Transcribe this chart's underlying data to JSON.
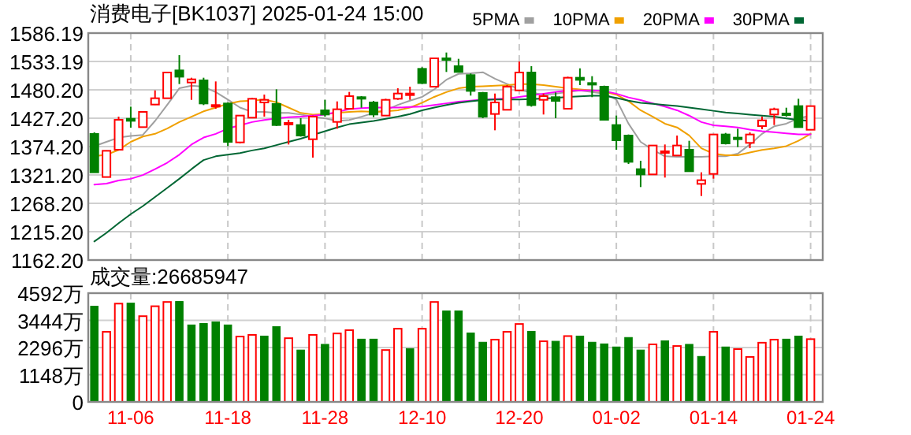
{
  "chart_data": [
    {
      "type": "candlestick",
      "title": "消费电子[BK1037] 2025-01-24 15:00",
      "categories": [
        null,
        null,
        null,
        null,
        null,
        null,
        null,
        null,
        null,
        null,
        null,
        null,
        null,
        null,
        null,
        null,
        null,
        null,
        null,
        null,
        null,
        null,
        null,
        null,
        null,
        null,
        null,
        null,
        null,
        null,
        null,
        null,
        null,
        null,
        null,
        null,
        null,
        null,
        null,
        null,
        null,
        null,
        null,
        null,
        null,
        null,
        null,
        null,
        null,
        null,
        null,
        null,
        null,
        null,
        null,
        null,
        null,
        null,
        null,
        null
      ],
      "ohlc": [
        [
          1397.8,
          1400.7,
          1326.0,
          1326.1
        ],
        [
          1317.3,
          1367.0,
          1317.0,
          1366.3
        ],
        [
          1368.3,
          1430.1,
          1368.0,
          1424.2
        ],
        [
          1426.2,
          1448.8,
          1409.5,
          1422.3
        ],
        [
          1410.5,
          1439.0,
          1410.0,
          1439.0
        ],
        [
          1452.7,
          1479.2,
          1452.0,
          1464.5
        ],
        [
          1464.5,
          1512.6,
          1464.0,
          1512.6
        ],
        [
          1516.5,
          1545.0,
          1491.0,
          1504.7
        ],
        [
          1493.9,
          1502.8,
          1461.5,
          1499.8
        ],
        [
          1497.9,
          1502.8,
          1451.7,
          1454.7
        ],
        [
          1449.8,
          1495.9,
          1444.9,
          1451.8
        ],
        [
          1454.7,
          1456.6,
          1375.2,
          1383.0
        ],
        [
          1382.0,
          1432.1,
          1380.0,
          1432.1
        ],
        [
          1428.2,
          1465.5,
          1428.0,
          1463.5
        ],
        [
          1456.6,
          1471.4,
          1430.1,
          1461.5
        ],
        [
          1453.7,
          1481.2,
          1412.5,
          1414.4
        ],
        [
          1416.4,
          1424.2,
          1378.1,
          1418.4
        ],
        [
          1414.4,
          1427.2,
          1392.8,
          1394.8
        ],
        [
          1387.9,
          1432.1,
          1353.6,
          1430.1
        ],
        [
          1441.9,
          1461.5,
          1430.1,
          1434.1
        ],
        [
          1420.3,
          1458.6,
          1407.6,
          1443.9
        ],
        [
          1444.9,
          1476.3,
          1444.0,
          1468.4
        ],
        [
          1466.5,
          1468.4,
          1446.8,
          1464.5
        ],
        [
          1456.6,
          1459.6,
          1429.2,
          1434.1
        ],
        [
          1432.1,
          1463.5,
          1432.0,
          1461.5
        ],
        [
          1463.5,
          1483.1,
          1461.5,
          1473.3
        ],
        [
          1471.4,
          1486.1,
          1461.5,
          1473.3
        ],
        [
          1519.4,
          1522.4,
          1491.0,
          1492.9
        ],
        [
          1486.1,
          1539.1,
          1486.0,
          1539.1
        ],
        [
          1539.1,
          1549.9,
          1513.6,
          1537.1
        ],
        [
          1524.4,
          1538.1,
          1513.6,
          1513.6
        ],
        [
          1507.7,
          1510.6,
          1469.4,
          1478.2
        ],
        [
          1474.3,
          1476.3,
          1427.2,
          1430.1
        ],
        [
          1435.1,
          1473.3,
          1404.6,
          1456.6
        ],
        [
          1442.9,
          1489.0,
          1442.0,
          1486.1
        ],
        [
          1479.2,
          1533.2,
          1479.0,
          1512.6
        ],
        [
          1512.6,
          1524.4,
          1448.8,
          1451.7
        ],
        [
          1461.5,
          1473.3,
          1434.1,
          1468.4
        ],
        [
          1466.5,
          1475.3,
          1427.2,
          1459.6
        ],
        [
          1444.9,
          1504.7,
          1444.0,
          1502.8
        ],
        [
          1502.8,
          1520.4,
          1489.0,
          1498.8
        ],
        [
          1492.9,
          1505.7,
          1466.5,
          1490.0
        ],
        [
          1486.1,
          1488.0,
          1424.2,
          1424.2
        ],
        [
          1414.4,
          1432.1,
          1368.3,
          1386.0
        ],
        [
          1394.8,
          1396.8,
          1341.8,
          1345.7
        ],
        [
          1332.0,
          1347.7,
          1298.6,
          1322.2
        ],
        [
          1322.2,
          1376.2,
          1322.0,
          1376.2
        ],
        [
          1363.4,
          1378.1,
          1316.3,
          1365.4
        ],
        [
          1357.5,
          1394.8,
          1357.0,
          1376.2
        ],
        [
          1368.3,
          1385.0,
          1328.0,
          1328.1
        ],
        [
          1304.5,
          1326.1,
          1281.9,
          1311.4
        ],
        [
          1323.1,
          1396.8,
          1314.3,
          1396.8
        ],
        [
          1396.8,
          1399.7,
          1378.1,
          1380.1
        ],
        [
          1390.9,
          1407.6,
          1373.2,
          1388.9
        ],
        [
          1381.1,
          1400.7,
          1371.2,
          1396.8
        ],
        [
          1412.5,
          1430.1,
          1406.6,
          1423.2
        ],
        [
          1434.1,
          1446.8,
          1414.4,
          1443.9
        ],
        [
          1436.0,
          1446.8,
          1430.1,
          1434.1
        ],
        [
          1449.8,
          1463.5,
          1410.5,
          1410.5
        ],
        [
          1405.6,
          1449.8,
          1405.0,
          1449.8
        ]
      ],
      "colors": [
        "#008000",
        "#ff0000",
        "#ff0000",
        "#008000",
        "#ff0000",
        "#ff0000",
        "#ff0000",
        "#008000",
        "#ff0000",
        "#008000",
        "#ff0000",
        "#008000",
        "#ff0000",
        "#ff0000",
        "#ff0000",
        "#008000",
        "#ff0000",
        "#008000",
        "#ff0000",
        "#008000",
        "#ff0000",
        "#ff0000",
        "#008000",
        "#008000",
        "#ff0000",
        "#ff0000",
        "#ff0000",
        "#008000",
        "#ff0000",
        "#008000",
        "#008000",
        "#008000",
        "#008000",
        "#ff0000",
        "#ff0000",
        "#ff0000",
        "#008000",
        "#ff0000",
        "#008000",
        "#ff0000",
        "#008000",
        "#008000",
        "#008000",
        "#008000",
        "#008000",
        "#008000",
        "#ff0000",
        "#ff0000",
        "#ff0000",
        "#008000",
        "#ff0000",
        "#ff0000",
        "#008000",
        "#008000",
        "#ff0000",
        "#ff0000",
        "#ff0000",
        "#008000",
        "#008000",
        "#ff0000"
      ],
      "series": [
        {
          "name": "5PMA",
          "type": "line",
          "color": "#a0a0a0",
          "values": [
            1375,
            1383,
            1391,
            1394,
            1396,
            1422,
            1452,
            1483,
            1488,
            1486,
            1476,
            1462,
            1447,
            1439,
            1439,
            1437,
            1437,
            1434,
            1430,
            1427,
            1422,
            1424,
            1430,
            1437,
            1442,
            1452,
            1460,
            1467,
            1481,
            1499,
            1510,
            1511,
            1513,
            1501,
            1491,
            1481,
            1475,
            1471,
            1473,
            1476,
            1479,
            1476,
            1473,
            1462,
            1417,
            1383,
            1368,
            1356,
            1355,
            1355,
            1355,
            1356,
            1356,
            1361,
            1378,
            1398,
            1412,
            1417,
            1427,
            1432
          ]
        },
        {
          "name": "10PMA",
          "type": "line",
          "color": "#f0a000",
          "values": [
            1356,
            1359,
            1368,
            1383,
            1393,
            1398,
            1408,
            1420,
            1430,
            1440,
            1447,
            1454,
            1459,
            1460,
            1462,
            1457,
            1447,
            1437,
            1434,
            1435,
            1437,
            1439,
            1440,
            1439,
            1440,
            1442,
            1447,
            1456,
            1467,
            1476,
            1483,
            1486,
            1487,
            1488,
            1489,
            1491,
            1491,
            1489,
            1486,
            1483,
            1481,
            1479,
            1477,
            1471,
            1459,
            1442,
            1430,
            1417,
            1410,
            1395,
            1371,
            1361,
            1358,
            1358,
            1363,
            1368,
            1371,
            1375,
            1385,
            1398
          ]
        },
        {
          "name": "20PMA",
          "type": "line",
          "color": "#ff00ff",
          "values": [
            1303,
            1305,
            1311,
            1314,
            1321,
            1332,
            1344,
            1359,
            1378,
            1391,
            1398,
            1408,
            1414,
            1420,
            1424,
            1427,
            1429,
            1430,
            1432,
            1434,
            1439,
            1444,
            1446,
            1447,
            1447,
            1447,
            1448,
            1449,
            1452,
            1455,
            1458,
            1460,
            1462,
            1463,
            1464,
            1467,
            1470,
            1473,
            1476,
            1479,
            1479,
            1479,
            1478,
            1473,
            1466,
            1461,
            1455,
            1449,
            1442,
            1432,
            1420,
            1414,
            1412,
            1410,
            1406,
            1403,
            1401,
            1399,
            1397,
            1397
          ]
        },
        {
          "name": "30PMA",
          "type": "line",
          "color": "#006633",
          "values": [
            1197,
            1213,
            1231,
            1248,
            1263,
            1280,
            1297,
            1314,
            1332,
            1349,
            1356,
            1359,
            1362,
            1367,
            1371,
            1377,
            1383,
            1389,
            1396,
            1403,
            1410,
            1416,
            1419,
            1422,
            1426,
            1430,
            1435,
            1442,
            1447,
            1452,
            1456,
            1459,
            1461,
            1462,
            1462,
            1462,
            1463,
            1464,
            1465,
            1467,
            1468,
            1469,
            1469,
            1465,
            1460,
            1456,
            1454,
            1452,
            1450,
            1447,
            1444,
            1441,
            1438,
            1436,
            1434,
            1432,
            1430,
            1427,
            1424,
            1422
          ]
        }
      ],
      "ylim": [
        1162.2,
        1586.19
      ],
      "yticks": [
        {
          "value": 1162.2,
          "label": "1162.20"
        },
        {
          "value": 1215.2,
          "label": "1215.20"
        },
        {
          "value": 1268.2,
          "label": "1268.20"
        },
        {
          "value": 1321.2,
          "label": "1321.20"
        },
        {
          "value": 1374.2,
          "label": "1374.20"
        },
        {
          "value": 1427.2,
          "label": "1427.20"
        },
        {
          "value": 1480.2,
          "label": "1480.20"
        },
        {
          "value": 1533.19,
          "label": "1533.19"
        },
        {
          "value": 1586.19,
          "label": "1586.19"
        }
      ],
      "grid": true,
      "legend": "top right",
      "tick_labels": "y"
    },
    {
      "type": "bar",
      "title": "成交量:26685947",
      "categories": [
        null,
        null,
        null,
        "11-06",
        null,
        null,
        null,
        null,
        null,
        null,
        null,
        "11-18",
        null,
        null,
        null,
        null,
        null,
        null,
        null,
        "11-28",
        null,
        null,
        null,
        null,
        null,
        null,
        null,
        "12-10",
        null,
        null,
        null,
        null,
        null,
        null,
        null,
        "12-20",
        null,
        null,
        null,
        null,
        null,
        null,
        null,
        "01-02",
        null,
        null,
        null,
        null,
        null,
        null,
        null,
        "01-14",
        null,
        null,
        null,
        null,
        null,
        null,
        null,
        "01-24"
      ],
      "values": [
        4040,
        2960,
        4150,
        4170,
        3620,
        4040,
        4220,
        4240,
        3250,
        3310,
        3380,
        3250,
        2760,
        2830,
        2780,
        3180,
        2690,
        2190,
        2830,
        2430,
        2890,
        3030,
        2650,
        2650,
        2190,
        3090,
        2250,
        3090,
        4220,
        3840,
        3840,
        2910,
        2520,
        2630,
        2960,
        3290,
        2980,
        2560,
        2560,
        2780,
        2780,
        2520,
        2450,
        2320,
        2720,
        2190,
        2430,
        2580,
        2360,
        2430,
        1920,
        2960,
        2320,
        2230,
        1900,
        2500,
        2630,
        2650,
        2780,
        2650
      ],
      "colors": [
        "#008000",
        "#ff0000",
        "#ff0000",
        "#008000",
        "#ff0000",
        "#ff0000",
        "#ff0000",
        "#008000",
        "#008000",
        "#008000",
        "#008000",
        "#008000",
        "#ff0000",
        "#ff0000",
        "#008000",
        "#008000",
        "#ff0000",
        "#008000",
        "#ff0000",
        "#008000",
        "#ff0000",
        "#ff0000",
        "#008000",
        "#008000",
        "#ff0000",
        "#ff0000",
        "#008000",
        "#ff0000",
        "#ff0000",
        "#008000",
        "#008000",
        "#008000",
        "#008000",
        "#ff0000",
        "#ff0000",
        "#ff0000",
        "#008000",
        "#ff0000",
        "#008000",
        "#ff0000",
        "#008000",
        "#008000",
        "#008000",
        "#008000",
        "#008000",
        "#008000",
        "#ff0000",
        "#008000",
        "#ff0000",
        "#008000",
        "#008000",
        "#ff0000",
        "#008000",
        "#ff0000",
        "#ff0000",
        "#ff0000",
        "#ff0000",
        "#008000",
        "#008000",
        "#ff0000"
      ],
      "ylim": [
        0,
        4592
      ],
      "yticks": [
        0,
        {
          "value": 1148,
          "label": "1148万"
        },
        {
          "value": 2296,
          "label": "2296万"
        },
        {
          "value": 3444,
          "label": "3444万"
        },
        {
          "value": 4592,
          "label": "4592万"
        }
      ],
      "grid": true
    }
  ]
}
